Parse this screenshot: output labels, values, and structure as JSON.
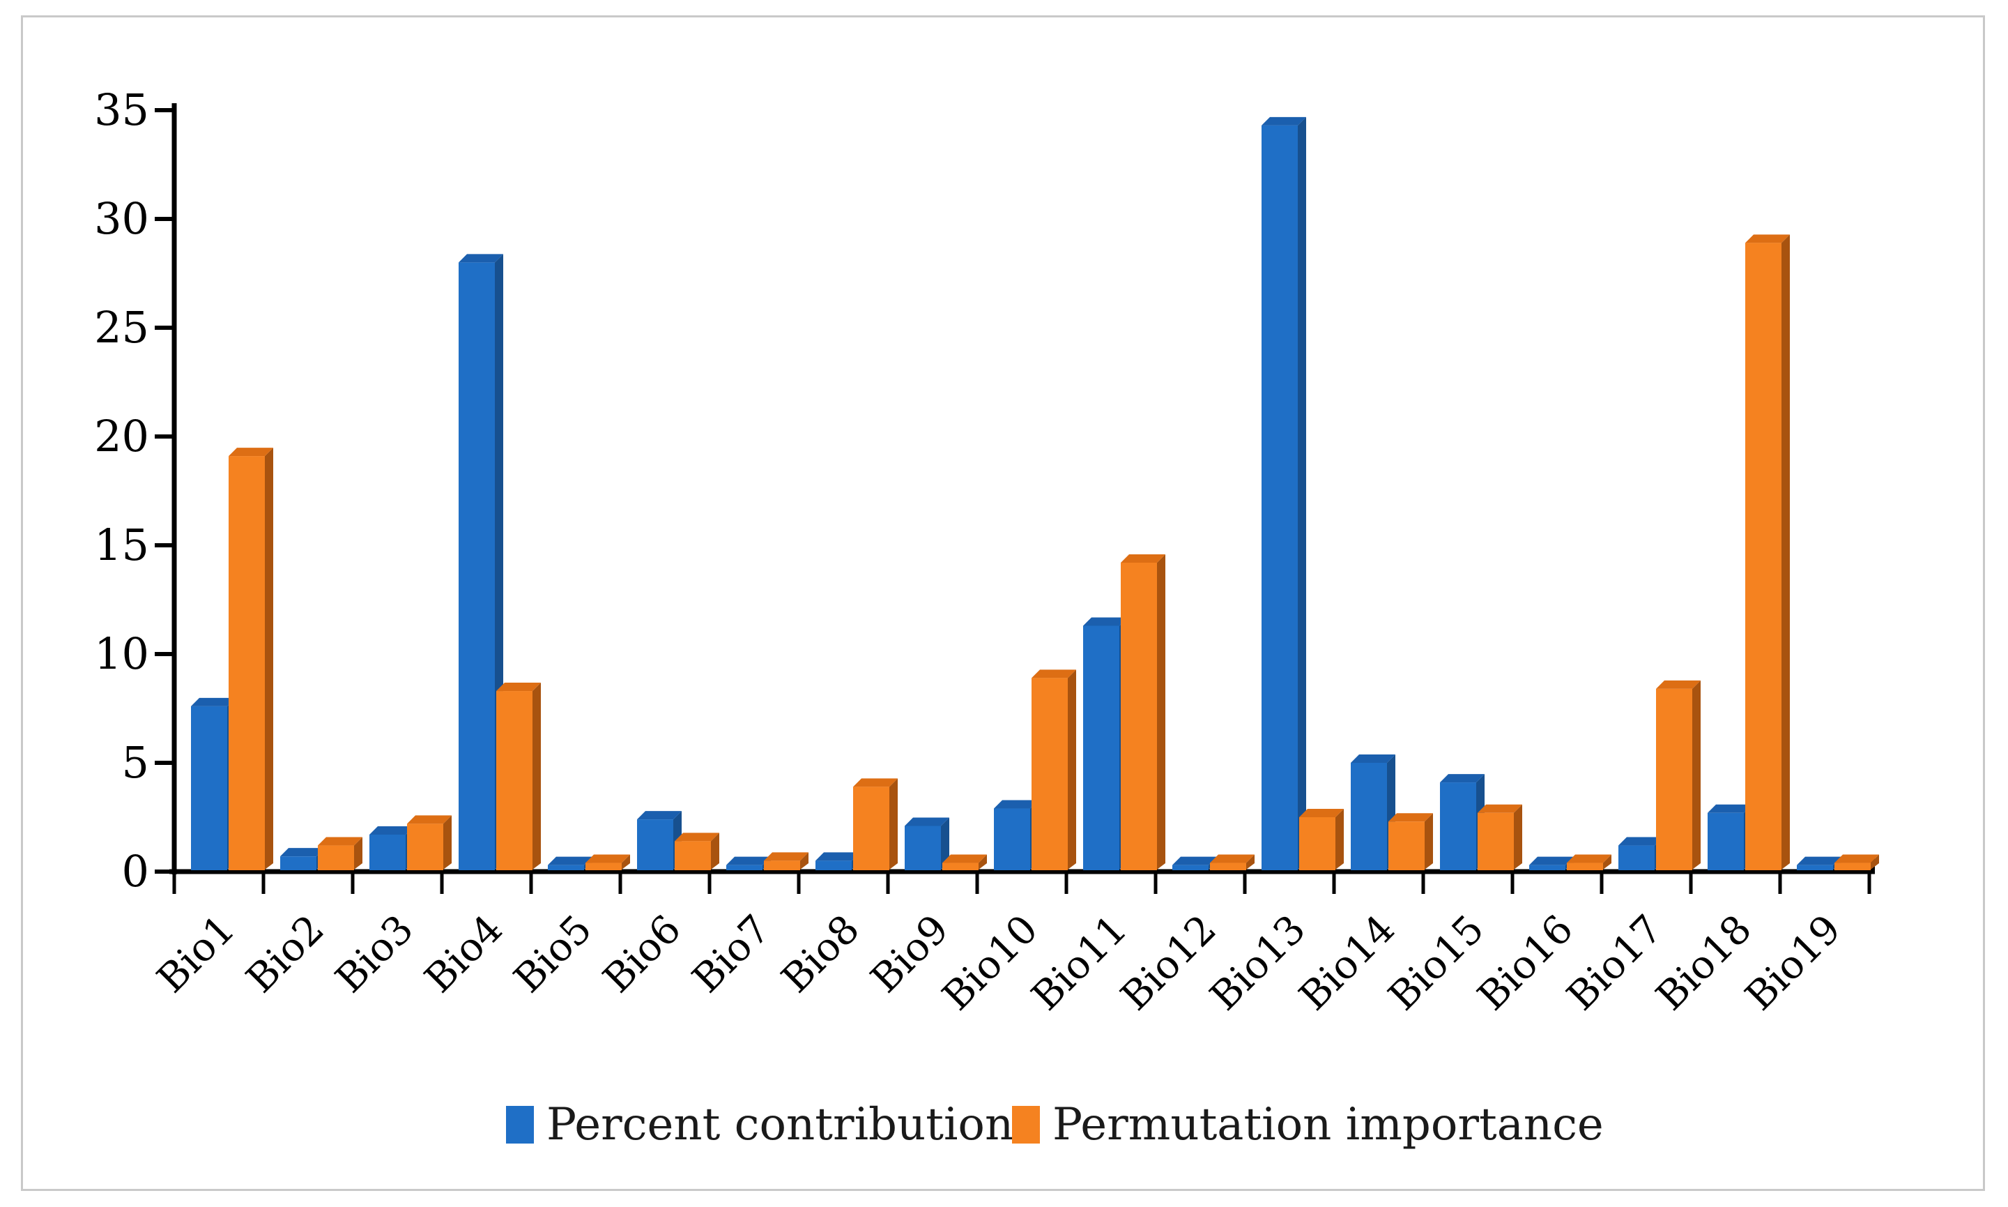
{
  "figure": {
    "background": "#ffffff",
    "border_color": "#c9c9c9"
  },
  "chart_data": {
    "type": "bar",
    "title": "",
    "xlabel": "",
    "ylabel": "",
    "categories": [
      "Bio1",
      "Bio2",
      "Bio3",
      "Bio4",
      "Bio5",
      "Bio6",
      "Bio7",
      "Bio8",
      "Bio9",
      "Bio10",
      "Bio11",
      "Bio12",
      "Bio13",
      "Bio14",
      "Bio15",
      "Bio16",
      "Bio17",
      "Bio18",
      "Bio19"
    ],
    "series": [
      {
        "name": "Percent contribution",
        "color": "#1F6FC6",
        "side_color": "#17508F",
        "top_color": "#1B5FAE",
        "values": [
          7.6,
          0.7,
          1.7,
          28.0,
          0.3,
          2.4,
          0.3,
          0.5,
          2.1,
          2.9,
          11.3,
          0.3,
          34.3,
          5.0,
          4.1,
          0.3,
          1.2,
          2.7,
          0.3
        ]
      },
      {
        "name": "Permutation importance",
        "color": "#F58220",
        "side_color": "#A8530F",
        "top_color": "#DD6E14",
        "values": [
          19.1,
          1.2,
          2.2,
          8.3,
          0.4,
          1.4,
          0.5,
          3.9,
          0.4,
          8.9,
          14.2,
          0.4,
          2.5,
          2.3,
          2.7,
          0.4,
          8.4,
          28.9,
          0.4
        ]
      }
    ],
    "ylim": [
      0,
      35
    ],
    "yticks": [
      0,
      5,
      10,
      15,
      20,
      25,
      30,
      35
    ],
    "grid": false,
    "legend_position": "bottom",
    "axis_color": "#000000",
    "text_color": "#000000"
  }
}
